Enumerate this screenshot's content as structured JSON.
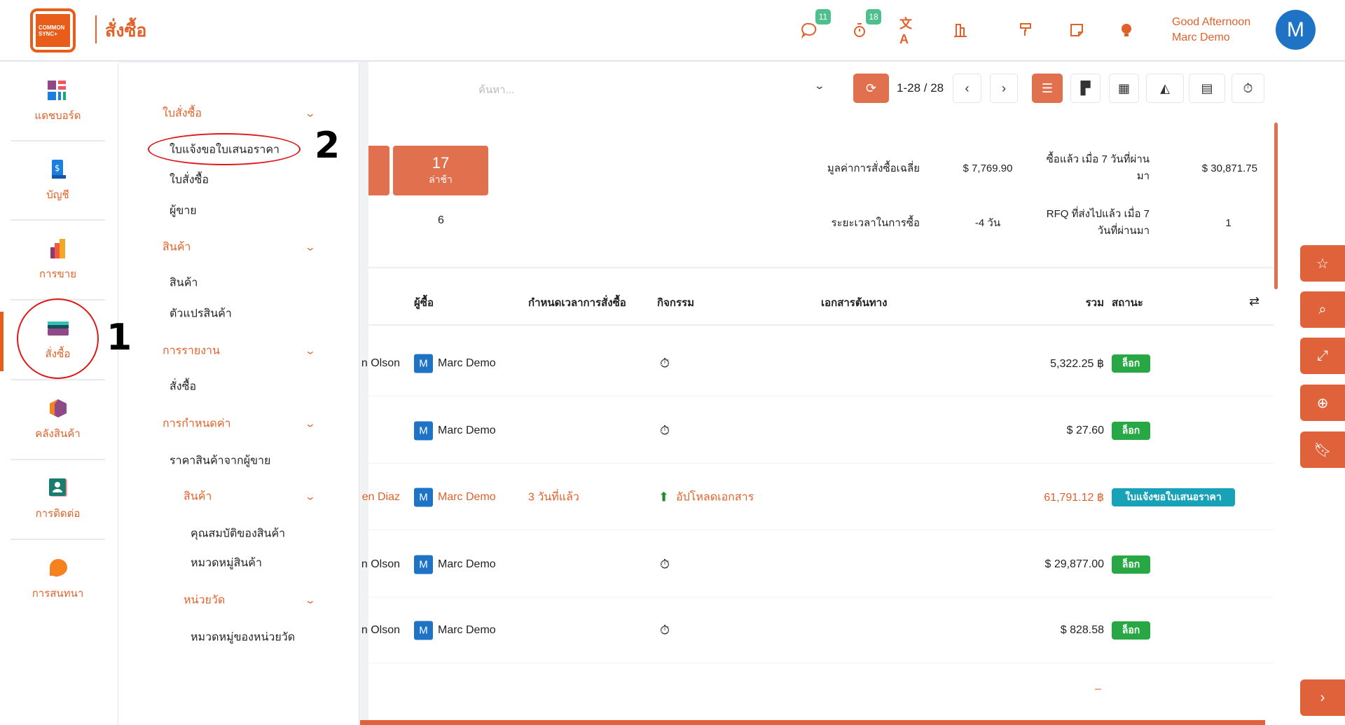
{
  "app": {
    "logo_text": "COMMON SYNC+",
    "title": "สั่งซื้อ",
    "greeting": "Good Afternoon",
    "user_name": "Marc Demo",
    "avatar_letter": "M"
  },
  "header_icons": [
    {
      "name": "chat-icon",
      "badge": "11"
    },
    {
      "name": "timer-icon",
      "badge": "18"
    },
    {
      "name": "translate-icon"
    },
    {
      "name": "building-icon"
    },
    {
      "name": "paint-roller-icon"
    },
    {
      "name": "note-icon"
    },
    {
      "name": "lightbulb-icon"
    }
  ],
  "sidebar": {
    "items": [
      {
        "label": "แดชบอร์ด",
        "icon": "dashboard-icon"
      },
      {
        "label": "บัญชี",
        "icon": "accounting-icon"
      },
      {
        "label": "การขาย",
        "icon": "sales-icon"
      },
      {
        "label": "สั่งซื้อ",
        "icon": "purchase-icon",
        "active": true
      },
      {
        "label": "คลังสินค้า",
        "icon": "inventory-icon"
      },
      {
        "label": "การติดต่อ",
        "icon": "contacts-icon"
      },
      {
        "label": "การสนทนา",
        "icon": "discuss-icon"
      }
    ]
  },
  "menu": [
    {
      "label": "ใบสั่งซื้อ",
      "type": "header"
    },
    {
      "label": "ใบแจ้งขอใบเสนอราคา",
      "type": "item"
    },
    {
      "label": "ใบสั่งซื้อ",
      "type": "item"
    },
    {
      "label": "ผู้ขาย",
      "type": "item"
    },
    {
      "label": "สินค้า",
      "type": "header"
    },
    {
      "label": "สินค้า",
      "type": "item"
    },
    {
      "label": "ตัวแปรสินค้า",
      "type": "item"
    },
    {
      "label": "การรายงาน",
      "type": "header"
    },
    {
      "label": "สั่งซื้อ",
      "type": "item"
    },
    {
      "label": "การกำหนดค่า",
      "type": "header"
    },
    {
      "label": "ราคาสินค้าจากผู้ขาย",
      "type": "item"
    },
    {
      "label": "สินค้า",
      "type": "subheader"
    },
    {
      "label": "คุณสมบัติของสินค้า",
      "type": "subitem"
    },
    {
      "label": "หมวดหมู่สินค้า",
      "type": "subitem"
    },
    {
      "label": "หน่วยวัด",
      "type": "subheader"
    },
    {
      "label": "หมวดหมู่ของหน่วยวัด",
      "type": "subitem"
    }
  ],
  "toolbar": {
    "search_placeholder": "ค้นหา...",
    "pager": "1-28 / 28",
    "views": [
      "list-view-icon",
      "kanban-view-icon",
      "pivot-view-icon",
      "graph-view-icon",
      "calendar-view-icon",
      "activity-view-icon"
    ],
    "active_view": "list-view-icon"
  },
  "stats": {
    "tile_late_count": "17",
    "tile_late_label": "ล่าช้า",
    "tile_below": "6",
    "avg_label": "มูลค่าการสั่งซื้อเฉลี่ย",
    "avg_value": "$ 7,769.90",
    "bought_label": "ซื้อแล้ว เมื่อ 7 วันที่ผ่านมา",
    "bought_value": "$ 30,871.75",
    "lead_label": "ระยะเวลาในการซื้อ",
    "lead_value": "-4 วัน",
    "rfq_label": "RFQ ที่ส่งไปแล้ว เมื่อ 7 วันที่ผ่านมา",
    "rfq_value": "1"
  },
  "table": {
    "headers": {
      "buyer": "ผู้ซื้อ",
      "deadline": "กำหนดเวลาการสั่งซื้อ",
      "activity": "กิจกรรม",
      "source": "เอกสารต้นทาง",
      "total": "รวม",
      "status": "สถานะ"
    },
    "rows": [
      {
        "vendor": "n Olson",
        "buyer": "Marc Demo",
        "deadline": "",
        "activity": "",
        "total": "5,322.25 ฿",
        "status": "ล็อก"
      },
      {
        "vendor": "",
        "buyer": "Marc Demo",
        "deadline": "",
        "activity": "",
        "total": "$ 27.60",
        "status": "ล็อก"
      },
      {
        "vendor": "en Diaz",
        "buyer": "Marc Demo",
        "deadline": "3 วันที่แล้ว",
        "activity": "อัปโหลดเอกสาร",
        "total": "61,791.12 ฿",
        "status": "ใบแจ้งขอใบเสนอราคา",
        "highlight": true
      },
      {
        "vendor": "n Olson",
        "buyer": "Marc Demo",
        "deadline": "",
        "activity": "",
        "total": "$ 29,877.00",
        "status": "ล็อก"
      },
      {
        "vendor": "n Olson",
        "buyer": "Marc Demo",
        "deadline": "",
        "activity": "",
        "total": "$ 828.58",
        "status": "ล็อก"
      }
    ],
    "footer_total": "–"
  },
  "right_buttons": [
    "star-icon",
    "search-icon",
    "expand-icon",
    "zoom-in-icon",
    "bookmark-icon"
  ],
  "annotations": {
    "step1": "1",
    "step2": "2"
  },
  "colors": {
    "accent": "#e0622a",
    "status_locked": "#28a745",
    "status_rfq": "#17a2b8",
    "avatar": "#1f73c4"
  }
}
